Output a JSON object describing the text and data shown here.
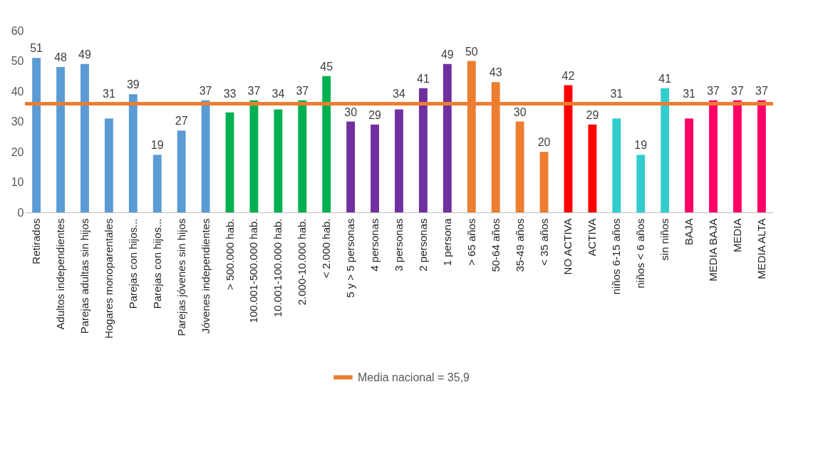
{
  "chart_data": {
    "type": "bar",
    "categories": [
      "Retirados",
      "Adultos independientes",
      "Parejas adultas sin hijos",
      "Hogares monoparentales",
      "Parejas con hijos...",
      "Parejas con hijos...",
      "Parejas jóvenes sin hijos",
      "Jóvenes independientes",
      "> 500.000 hab.",
      "100.001-500.000 hab.",
      "10.001-100.000 hab.",
      "2.000-10.000 hab.",
      "< 2.000 hab.",
      "5 y > 5 personas",
      "4 personas",
      "3 personas",
      "2 personas",
      "1 persona",
      "> 65 años",
      "50-64 años",
      "35-49 años",
      "< 35 años",
      "NO ACTIVA",
      "ACTIVA",
      "niños 6-15 años",
      "niños < 6 años",
      "sin niños",
      "BAJA",
      "MEDIA BAJA",
      "MEDIA",
      "MEDIA ALTA"
    ],
    "values": [
      51,
      48,
      49,
      31,
      39,
      19,
      27,
      37,
      33,
      37,
      34,
      37,
      45,
      30,
      29,
      34,
      41,
      49,
      50,
      43,
      30,
      20,
      42,
      29,
      31,
      19,
      41,
      31,
      37,
      37,
      37
    ],
    "colors": [
      "#5b9bd5",
      "#5b9bd5",
      "#5b9bd5",
      "#5b9bd5",
      "#5b9bd5",
      "#5b9bd5",
      "#5b9bd5",
      "#5b9bd5",
      "#00b050",
      "#00b050",
      "#00b050",
      "#00b050",
      "#00b050",
      "#7030a0",
      "#7030a0",
      "#7030a0",
      "#7030a0",
      "#7030a0",
      "#ed7d31",
      "#ed7d31",
      "#ed7d31",
      "#ed7d31",
      "#ff0000",
      "#ff0000",
      "#33cccc",
      "#33cccc",
      "#33cccc",
      "#ff0066",
      "#ff0066",
      "#ff0066",
      "#ff0066"
    ],
    "ylim": [
      0,
      60
    ],
    "yticks": [
      0,
      10,
      20,
      30,
      40,
      50,
      60
    ],
    "data_labels": true,
    "legend": "bottom",
    "ref_lines": [
      {
        "axis": "y",
        "value": 35.9,
        "label": "Media nacional = 35,9",
        "color": "#ed7d31"
      }
    ]
  }
}
